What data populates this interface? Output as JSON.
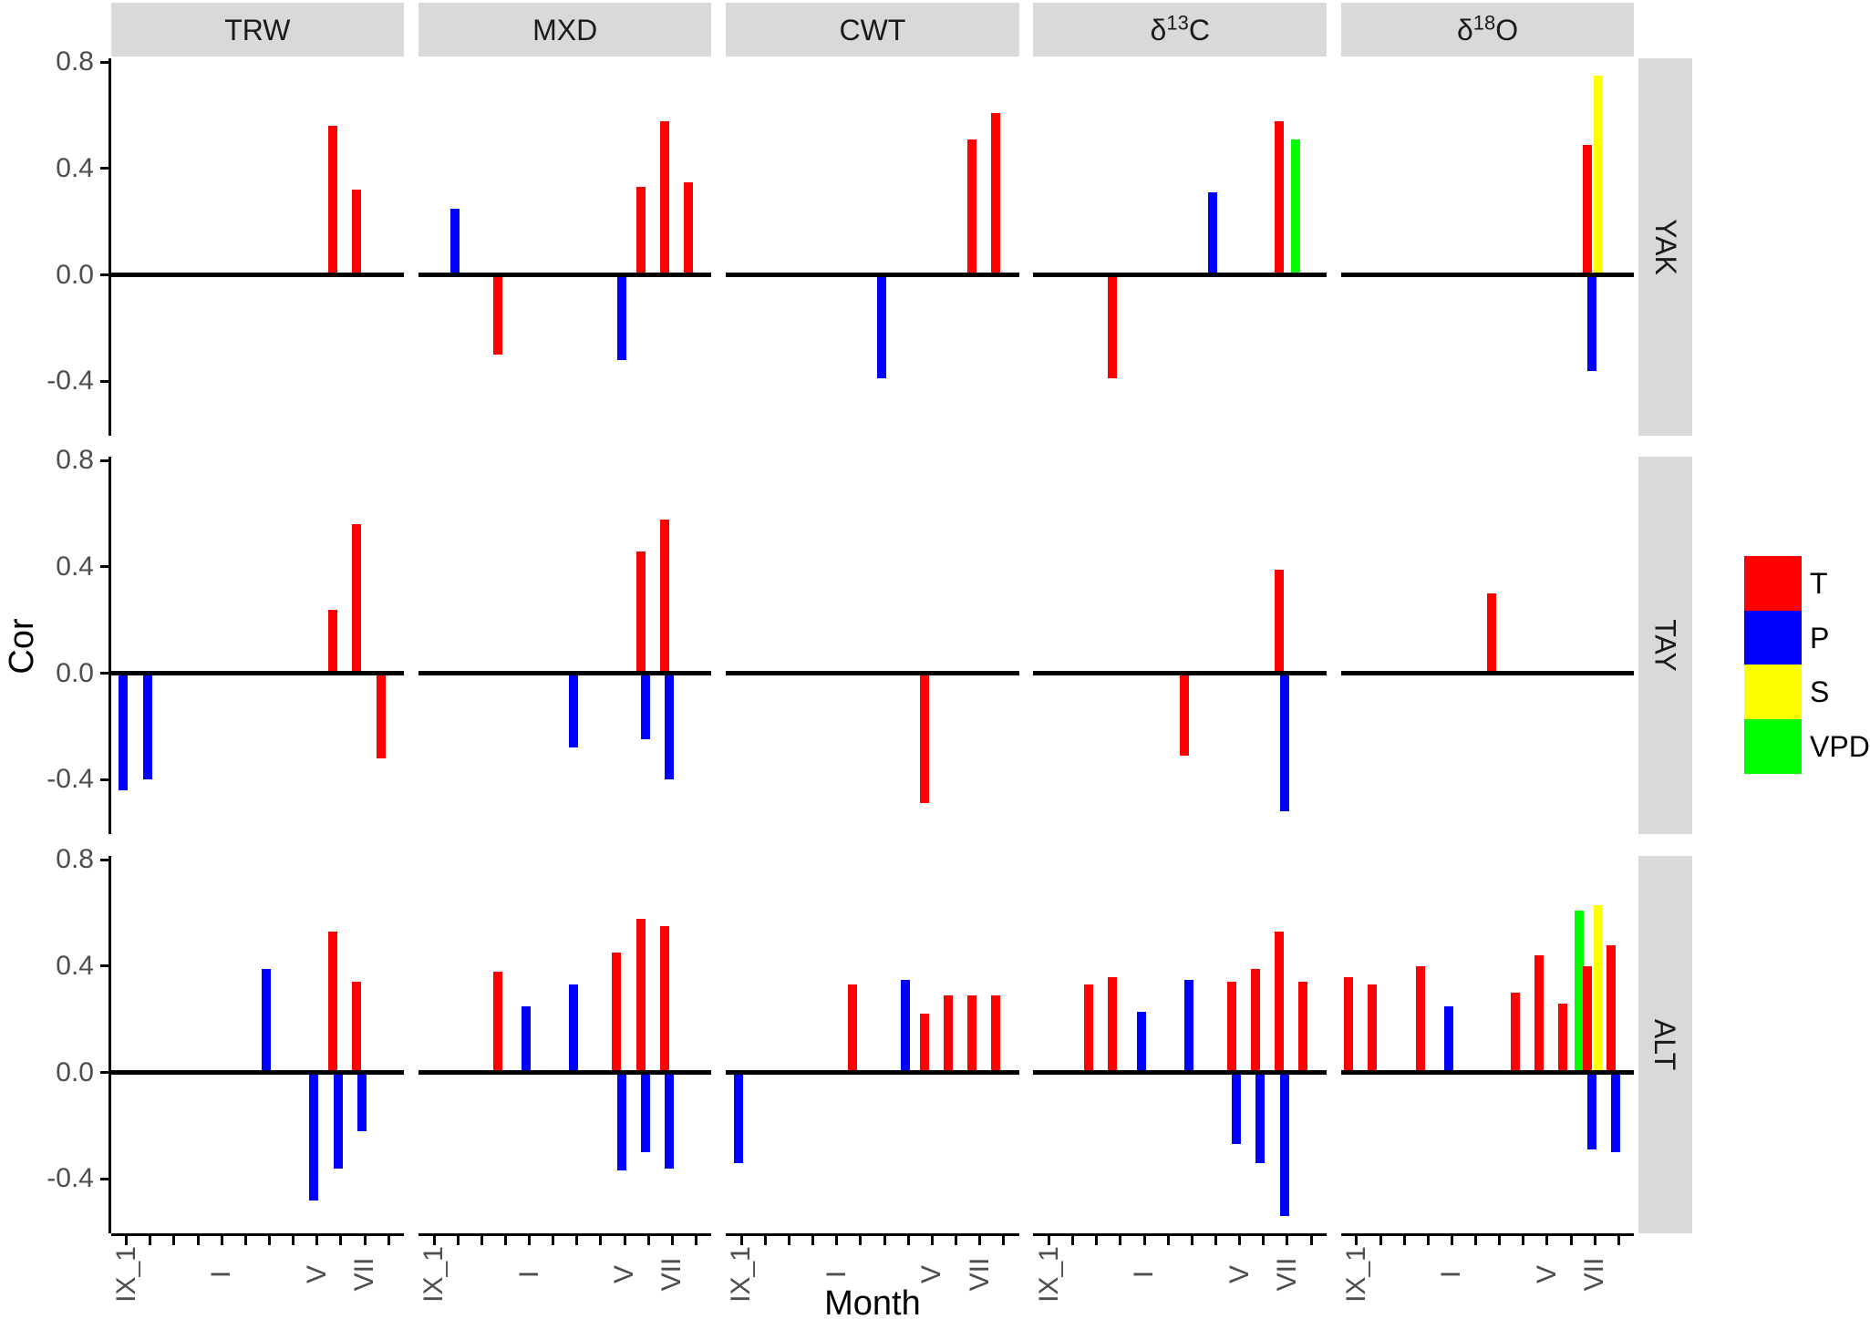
{
  "chart_data": {
    "type": "bar",
    "description": "Faceted bar chart of correlations (Cor) between tree-ring proxies (columns: TRW, MXD, CWT, d13C, d18O) and monthly climate variables (T, P, S, VPD) for three sites (rows: YAK, TAY, ALT).",
    "xlabel": "Month",
    "ylabel": "Cor",
    "ylim": [
      -0.605,
      0.815
    ],
    "grid": false,
    "legend_position": "right",
    "y_ticks": [
      {
        "value": 0.8,
        "label": "0.8"
      },
      {
        "value": 0.4,
        "label": "0.4"
      },
      {
        "value": 0.0,
        "label": "0.0"
      },
      {
        "value": -0.4,
        "label": "-0.4"
      }
    ],
    "months": [
      "IX_1",
      "X_1",
      "XI_1",
      "XII_1",
      "I",
      "II",
      "III",
      "IV",
      "V",
      "VI",
      "VII",
      "VIII"
    ],
    "x_labeled_months": [
      "IX_1",
      "I",
      "V",
      "VII"
    ],
    "col_facets": [
      {
        "id": "TRW",
        "label_parts": [
          [
            "t",
            "TRW"
          ]
        ]
      },
      {
        "id": "MXD",
        "label_parts": [
          [
            "t",
            "MXD"
          ]
        ]
      },
      {
        "id": "CWT",
        "label_parts": [
          [
            "t",
            "CWT"
          ]
        ]
      },
      {
        "id": "d13C",
        "label_parts": [
          [
            "t",
            "δ"
          ],
          [
            "sup",
            "13"
          ],
          [
            "t",
            "C"
          ]
        ]
      },
      {
        "id": "d18O",
        "label_parts": [
          [
            "t",
            "δ"
          ],
          [
            "sup",
            "18"
          ],
          [
            "t",
            "O"
          ]
        ]
      }
    ],
    "row_facets": [
      {
        "id": "YAK",
        "label": "YAK"
      },
      {
        "id": "TAY",
        "label": "TAY"
      },
      {
        "id": "ALT",
        "label": "ALT"
      }
    ],
    "series": [
      {
        "id": "T",
        "label": "T",
        "color": "#FF0000"
      },
      {
        "id": "P",
        "label": "P",
        "color": "#0000FF"
      },
      {
        "id": "S",
        "label": "S",
        "color": "#FFFF00"
      },
      {
        "id": "VPD",
        "label": "VPD",
        "color": "#00FF00"
      }
    ],
    "bars": [
      {
        "row": "YAK",
        "col": "TRW",
        "month": "VI",
        "series": "T",
        "value": 0.56
      },
      {
        "row": "YAK",
        "col": "TRW",
        "month": "VII",
        "series": "T",
        "value": 0.32
      },
      {
        "row": "YAK",
        "col": "MXD",
        "month": "X_1",
        "series": "P",
        "value": 0.25
      },
      {
        "row": "YAK",
        "col": "MXD",
        "month": "XII_1",
        "series": "T",
        "value": -0.3
      },
      {
        "row": "YAK",
        "col": "MXD",
        "month": "V",
        "series": "P",
        "value": -0.32
      },
      {
        "row": "YAK",
        "col": "MXD",
        "month": "VI",
        "series": "T",
        "value": 0.33
      },
      {
        "row": "YAK",
        "col": "MXD",
        "month": "VII",
        "series": "T",
        "value": 0.58
      },
      {
        "row": "YAK",
        "col": "MXD",
        "month": "VIII",
        "series": "T",
        "value": 0.35
      },
      {
        "row": "YAK",
        "col": "CWT",
        "month": "III",
        "series": "P",
        "value": -0.39
      },
      {
        "row": "YAK",
        "col": "CWT",
        "month": "VII",
        "series": "T",
        "value": 0.51
      },
      {
        "row": "YAK",
        "col": "CWT",
        "month": "VIII",
        "series": "T",
        "value": 0.61
      },
      {
        "row": "YAK",
        "col": "d13C",
        "month": "XII_1",
        "series": "T",
        "value": -0.39
      },
      {
        "row": "YAK",
        "col": "d13C",
        "month": "IV",
        "series": "P",
        "value": 0.31
      },
      {
        "row": "YAK",
        "col": "d13C",
        "month": "VII",
        "series": "T",
        "value": 0.58
      },
      {
        "row": "YAK",
        "col": "d13C",
        "month": "VII",
        "series": "VPD",
        "value": 0.51
      },
      {
        "row": "YAK",
        "col": "d18O",
        "month": "VII",
        "series": "T",
        "value": 0.49
      },
      {
        "row": "YAK",
        "col": "d18O",
        "month": "VII",
        "series": "P",
        "value": -0.36
      },
      {
        "row": "YAK",
        "col": "d18O",
        "month": "VII",
        "series": "S",
        "value": 0.75
      },
      {
        "row": "TAY",
        "col": "TRW",
        "month": "IX_1",
        "series": "P",
        "value": -0.44
      },
      {
        "row": "TAY",
        "col": "TRW",
        "month": "X_1",
        "series": "P",
        "value": -0.4
      },
      {
        "row": "TAY",
        "col": "TRW",
        "month": "VI",
        "series": "T",
        "value": 0.24
      },
      {
        "row": "TAY",
        "col": "TRW",
        "month": "VII",
        "series": "T",
        "value": 0.56
      },
      {
        "row": "TAY",
        "col": "TRW",
        "month": "VIII",
        "series": "T",
        "value": -0.32
      },
      {
        "row": "TAY",
        "col": "MXD",
        "month": "III",
        "series": "P",
        "value": -0.28
      },
      {
        "row": "TAY",
        "col": "MXD",
        "month": "VI",
        "series": "T",
        "value": 0.46
      },
      {
        "row": "TAY",
        "col": "MXD",
        "month": "VI",
        "series": "P",
        "value": -0.25
      },
      {
        "row": "TAY",
        "col": "MXD",
        "month": "VII",
        "series": "T",
        "value": 0.58
      },
      {
        "row": "TAY",
        "col": "MXD",
        "month": "VII",
        "series": "P",
        "value": -0.4
      },
      {
        "row": "TAY",
        "col": "CWT",
        "month": "V",
        "series": "T",
        "value": -0.49
      },
      {
        "row": "TAY",
        "col": "d13C",
        "month": "III",
        "series": "T",
        "value": -0.31
      },
      {
        "row": "TAY",
        "col": "d13C",
        "month": "VII",
        "series": "T",
        "value": 0.39
      },
      {
        "row": "TAY",
        "col": "d13C",
        "month": "VII",
        "series": "P",
        "value": -0.52
      },
      {
        "row": "TAY",
        "col": "d18O",
        "month": "III",
        "series": "T",
        "value": 0.3
      },
      {
        "row": "ALT",
        "col": "TRW",
        "month": "III",
        "series": "P",
        "value": 0.39
      },
      {
        "row": "ALT",
        "col": "TRW",
        "month": "V",
        "series": "P",
        "value": -0.48
      },
      {
        "row": "ALT",
        "col": "TRW",
        "month": "VI",
        "series": "T",
        "value": 0.53
      },
      {
        "row": "ALT",
        "col": "TRW",
        "month": "VI",
        "series": "P",
        "value": -0.36
      },
      {
        "row": "ALT",
        "col": "TRW",
        "month": "VII",
        "series": "T",
        "value": 0.34
      },
      {
        "row": "ALT",
        "col": "TRW",
        "month": "VII",
        "series": "P",
        "value": -0.22
      },
      {
        "row": "ALT",
        "col": "MXD",
        "month": "XII_1",
        "series": "T",
        "value": 0.38
      },
      {
        "row": "ALT",
        "col": "MXD",
        "month": "I",
        "series": "P",
        "value": 0.25
      },
      {
        "row": "ALT",
        "col": "MXD",
        "month": "III",
        "series": "P",
        "value": 0.33
      },
      {
        "row": "ALT",
        "col": "MXD",
        "month": "V",
        "series": "T",
        "value": 0.45
      },
      {
        "row": "ALT",
        "col": "MXD",
        "month": "V",
        "series": "P",
        "value": -0.37
      },
      {
        "row": "ALT",
        "col": "MXD",
        "month": "VI",
        "series": "T",
        "value": 0.58
      },
      {
        "row": "ALT",
        "col": "MXD",
        "month": "VI",
        "series": "P",
        "value": -0.3
      },
      {
        "row": "ALT",
        "col": "MXD",
        "month": "VII",
        "series": "T",
        "value": 0.55
      },
      {
        "row": "ALT",
        "col": "MXD",
        "month": "VII",
        "series": "P",
        "value": -0.36
      },
      {
        "row": "ALT",
        "col": "CWT",
        "month": "IX_1",
        "series": "P",
        "value": -0.34
      },
      {
        "row": "ALT",
        "col": "CWT",
        "month": "II",
        "series": "T",
        "value": 0.33
      },
      {
        "row": "ALT",
        "col": "CWT",
        "month": "IV",
        "series": "P",
        "value": 0.35
      },
      {
        "row": "ALT",
        "col": "CWT",
        "month": "V",
        "series": "T",
        "value": 0.22
      },
      {
        "row": "ALT",
        "col": "CWT",
        "month": "VI",
        "series": "T",
        "value": 0.29
      },
      {
        "row": "ALT",
        "col": "CWT",
        "month": "VII",
        "series": "T",
        "value": 0.29
      },
      {
        "row": "ALT",
        "col": "CWT",
        "month": "VIII",
        "series": "T",
        "value": 0.29
      },
      {
        "row": "ALT",
        "col": "d13C",
        "month": "XI_1",
        "series": "T",
        "value": 0.33
      },
      {
        "row": "ALT",
        "col": "d13C",
        "month": "XII_1",
        "series": "T",
        "value": 0.36
      },
      {
        "row": "ALT",
        "col": "d13C",
        "month": "I",
        "series": "P",
        "value": 0.23
      },
      {
        "row": "ALT",
        "col": "d13C",
        "month": "III",
        "series": "P",
        "value": 0.35
      },
      {
        "row": "ALT",
        "col": "d13C",
        "month": "V",
        "series": "T",
        "value": 0.34
      },
      {
        "row": "ALT",
        "col": "d13C",
        "month": "V",
        "series": "P",
        "value": -0.27
      },
      {
        "row": "ALT",
        "col": "d13C",
        "month": "VI",
        "series": "T",
        "value": 0.39
      },
      {
        "row": "ALT",
        "col": "d13C",
        "month": "VI",
        "series": "P",
        "value": -0.34
      },
      {
        "row": "ALT",
        "col": "d13C",
        "month": "VII",
        "series": "T",
        "value": 0.53
      },
      {
        "row": "ALT",
        "col": "d13C",
        "month": "VII",
        "series": "P",
        "value": -0.54
      },
      {
        "row": "ALT",
        "col": "d13C",
        "month": "VIII",
        "series": "T",
        "value": 0.34
      },
      {
        "row": "ALT",
        "col": "d18O",
        "month": "IX_1",
        "series": "T",
        "value": 0.36
      },
      {
        "row": "ALT",
        "col": "d18O",
        "month": "X_1",
        "series": "T",
        "value": 0.33
      },
      {
        "row": "ALT",
        "col": "d18O",
        "month": "XII_1",
        "series": "T",
        "value": 0.4
      },
      {
        "row": "ALT",
        "col": "d18O",
        "month": "I",
        "series": "P",
        "value": 0.25
      },
      {
        "row": "ALT",
        "col": "d18O",
        "month": "IV",
        "series": "T",
        "value": 0.3
      },
      {
        "row": "ALT",
        "col": "d18O",
        "month": "V",
        "series": "T",
        "value": 0.44
      },
      {
        "row": "ALT",
        "col": "d18O",
        "month": "VI",
        "series": "T",
        "value": 0.26
      },
      {
        "row": "ALT",
        "col": "d18O",
        "month": "VI",
        "series": "VPD",
        "value": 0.61
      },
      {
        "row": "ALT",
        "col": "d18O",
        "month": "VII",
        "series": "T",
        "value": 0.4
      },
      {
        "row": "ALT",
        "col": "d18O",
        "month": "VII",
        "series": "P",
        "value": -0.29
      },
      {
        "row": "ALT",
        "col": "d18O",
        "month": "VII",
        "series": "S",
        "value": 0.63
      },
      {
        "row": "ALT",
        "col": "d18O",
        "month": "VIII",
        "series": "T",
        "value": 0.48
      },
      {
        "row": "ALT",
        "col": "d18O",
        "month": "VIII",
        "series": "P",
        "value": -0.3
      }
    ]
  }
}
